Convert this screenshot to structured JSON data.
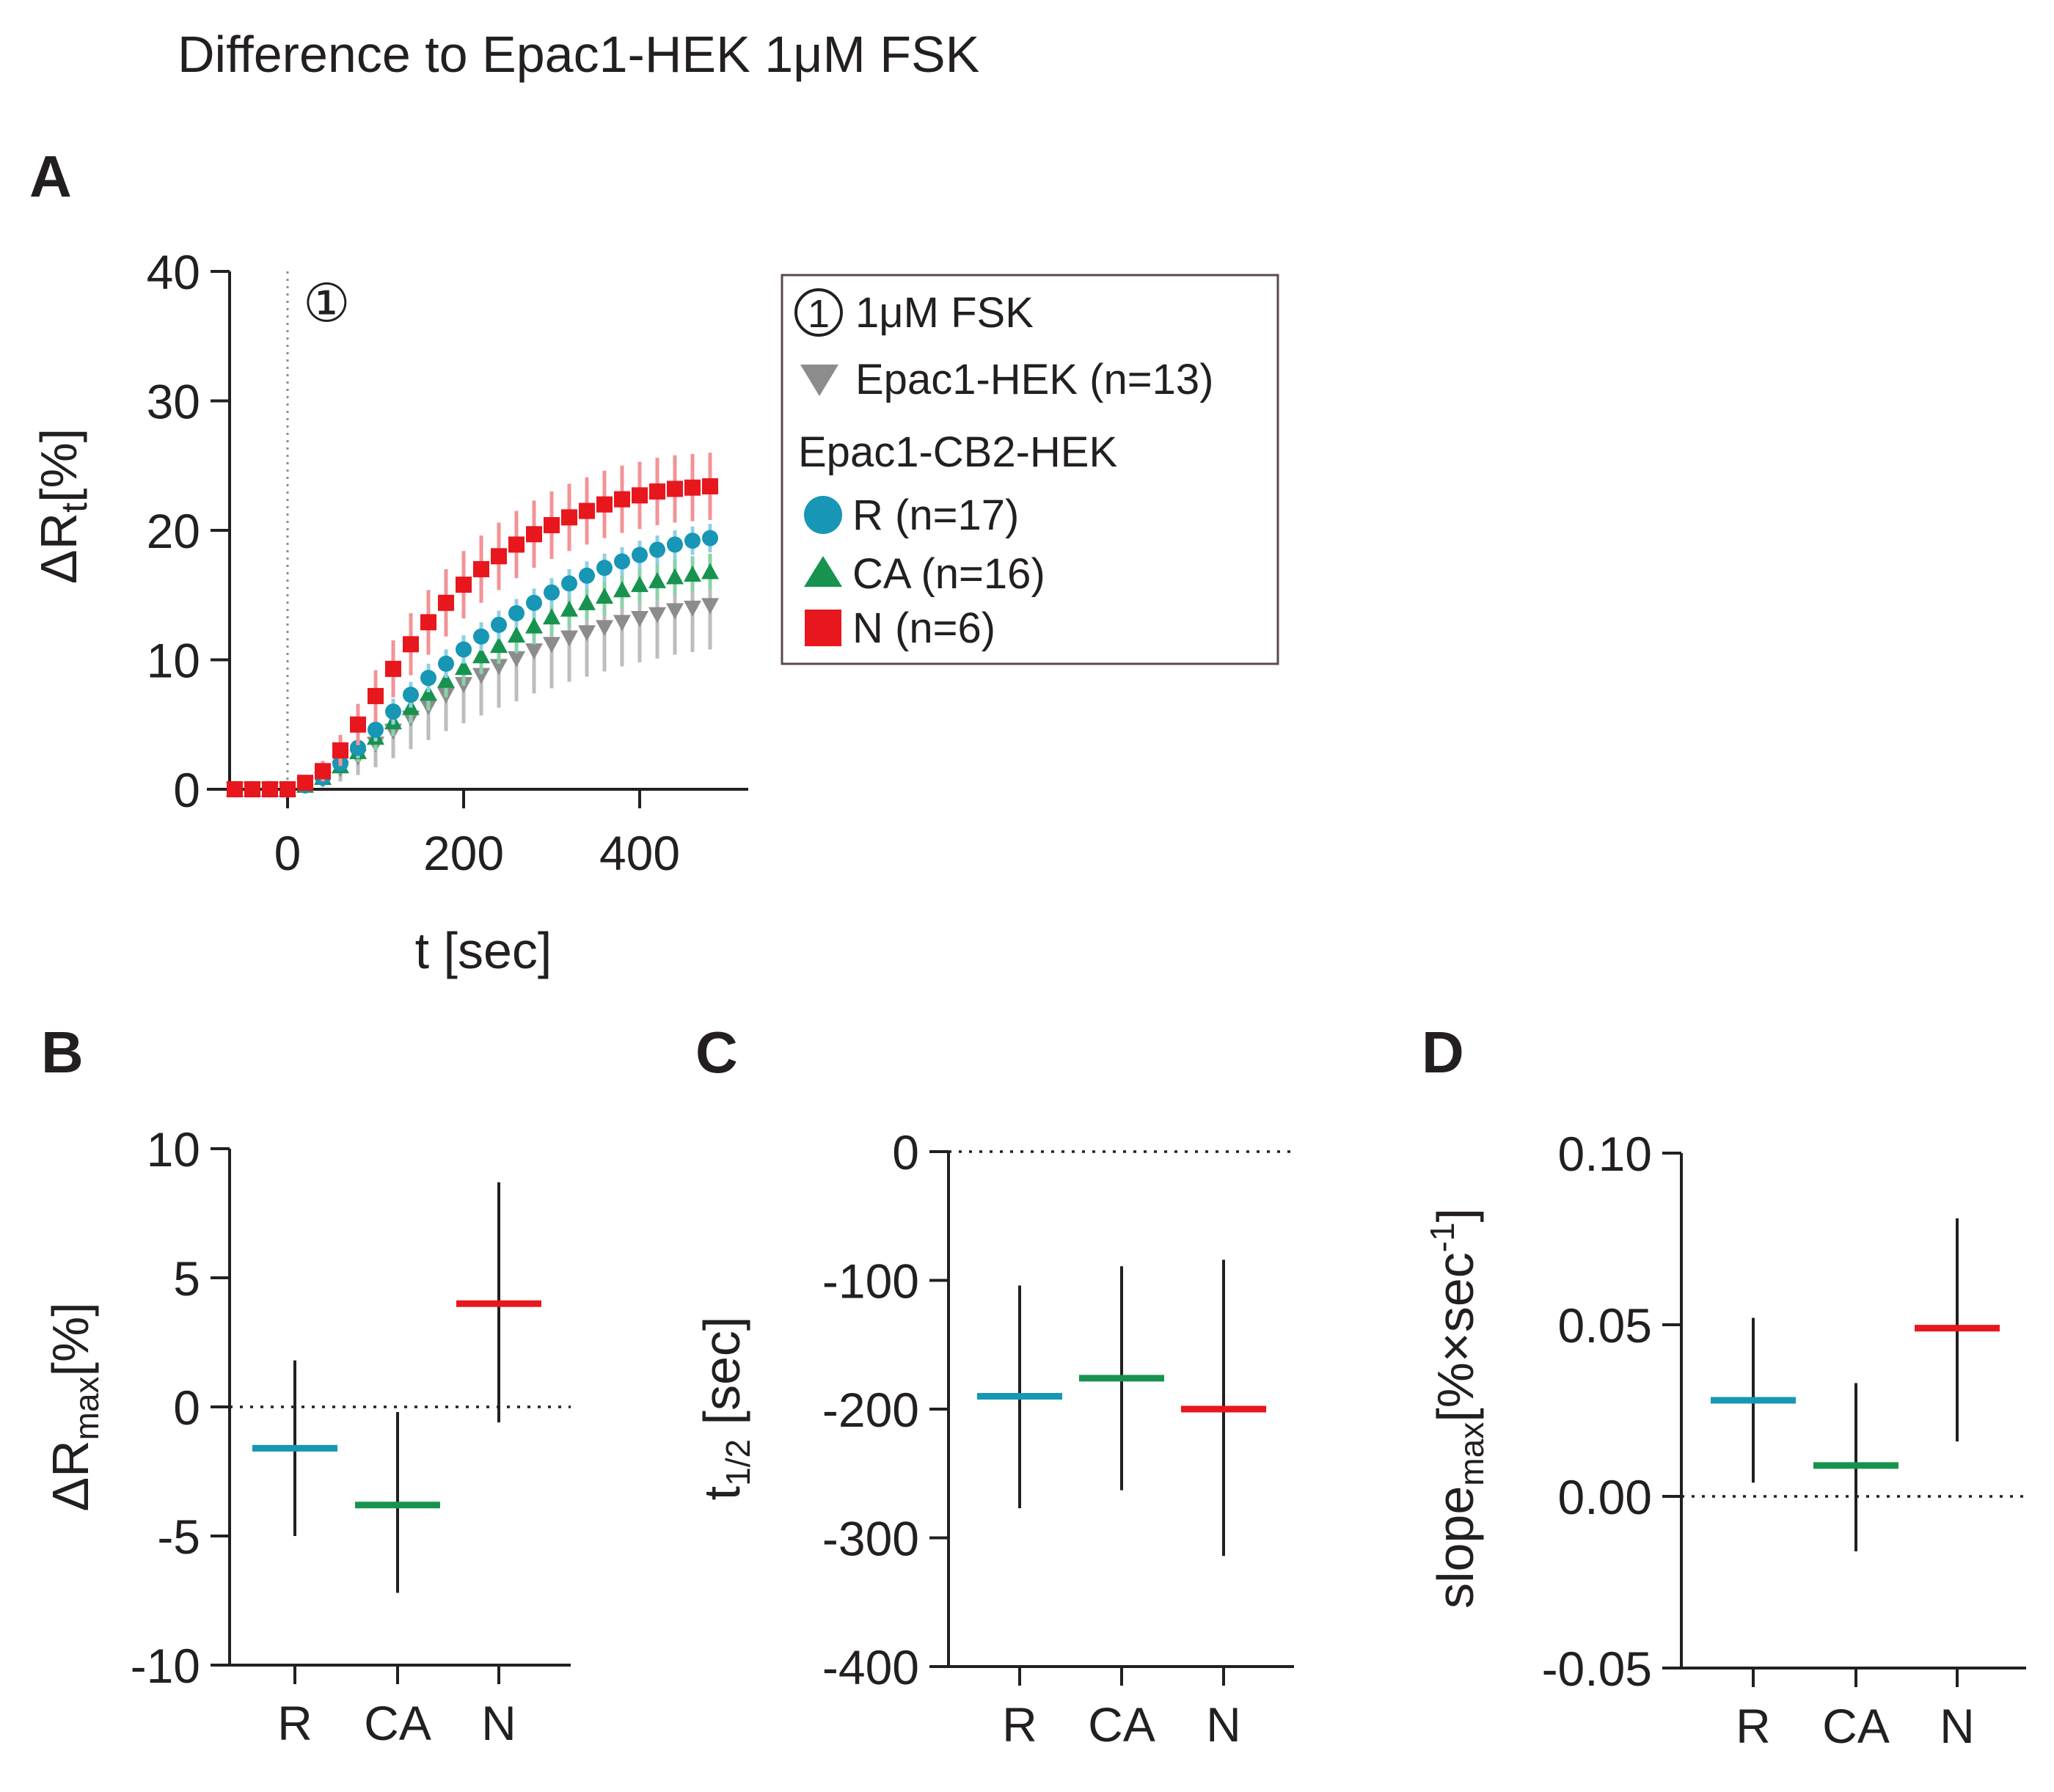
{
  "figure": {
    "title": "Difference to Epac1-HEK 1μM FSK",
    "colors": {
      "R": "#1796b5",
      "CA": "#17934f",
      "N": "#e8161d",
      "Epac1-HEK": "#8c8c8c"
    }
  },
  "chart_data": [
    {
      "panel": "A",
      "type": "scatter",
      "xlabel": "t [sec]",
      "ylabel": "ΔRt[%]",
      "ylabel_main": "ΔR",
      "ylabel_sub": "t",
      "ylabel_tail": "[%]",
      "xlim": [
        -75,
        485
      ],
      "ylim": [
        0,
        40
      ],
      "xticks": [
        0,
        200,
        400
      ],
      "yticks": [
        0,
        10,
        20,
        30,
        40
      ],
      "event_marker": {
        "x": 0,
        "symbol": "①",
        "label": "1μM FSK"
      },
      "legend": {
        "event_label": "1μM FSK",
        "group_heading": "Epac1-CB2-HEK",
        "entries": [
          {
            "key": "Epac1-HEK",
            "label": "Epac1-HEK (n=13)",
            "marker": "triangle-down"
          },
          {
            "key": "R",
            "label": "R (n=17)",
            "marker": "circle"
          },
          {
            "key": "CA",
            "label": "CA (n=16)",
            "marker": "triangle-up"
          },
          {
            "key": "N",
            "label": "N (n=6)",
            "marker": "square"
          }
        ]
      },
      "x": [
        -60,
        -40,
        -20,
        0,
        20,
        40,
        60,
        80,
        100,
        120,
        140,
        160,
        180,
        200,
        220,
        240,
        260,
        280,
        300,
        320,
        340,
        360,
        380,
        400,
        420,
        440,
        460,
        480
      ],
      "series": [
        {
          "key": "Epac1-HEK",
          "marker": "triangle-down",
          "values": [
            0,
            0,
            0,
            0,
            0.3,
            0.8,
            1.6,
            2.5,
            3.5,
            4.5,
            5.5,
            6.4,
            7.3,
            8.1,
            8.8,
            9.5,
            10.1,
            10.7,
            11.2,
            11.7,
            12.1,
            12.5,
            12.9,
            13.2,
            13.5,
            13.8,
            14.0,
            14.2
          ],
          "errors": [
            0,
            0,
            0,
            0,
            0.3,
            0.6,
            1.0,
            1.4,
            1.8,
            2.1,
            2.4,
            2.6,
            2.8,
            3.0,
            3.1,
            3.2,
            3.3,
            3.3,
            3.4,
            3.4,
            3.4,
            3.4,
            3.4,
            3.4,
            3.4,
            3.4,
            3.4,
            3.4
          ]
        },
        {
          "key": "R",
          "marker": "circle",
          "values": [
            0,
            0,
            0,
            0,
            0.3,
            0.9,
            2.0,
            3.2,
            4.6,
            6.0,
            7.3,
            8.6,
            9.7,
            10.8,
            11.8,
            12.7,
            13.6,
            14.4,
            15.2,
            15.9,
            16.5,
            17.1,
            17.6,
            18.1,
            18.5,
            18.9,
            19.2,
            19.4
          ],
          "errors": [
            0,
            0,
            0,
            0,
            0.2,
            0.4,
            0.6,
            0.8,
            0.9,
            1.0,
            1.0,
            1.1,
            1.1,
            1.1,
            1.1,
            1.1,
            1.1,
            1.1,
            1.1,
            1.1,
            1.1,
            1.1,
            1.1,
            1.1,
            1.1,
            1.1,
            1.1,
            1.1
          ]
        },
        {
          "key": "CA",
          "marker": "triangle-up",
          "values": [
            0,
            0,
            0,
            0,
            0.3,
            0.9,
            1.8,
            2.9,
            4.0,
            5.2,
            6.3,
            7.4,
            8.4,
            9.4,
            10.3,
            11.1,
            11.9,
            12.6,
            13.3,
            13.9,
            14.4,
            14.9,
            15.4,
            15.8,
            16.1,
            16.4,
            16.6,
            16.8
          ],
          "errors": [
            0,
            0,
            0,
            0,
            0.2,
            0.4,
            0.6,
            0.8,
            1.0,
            1.1,
            1.2,
            1.3,
            1.3,
            1.4,
            1.4,
            1.4,
            1.4,
            1.4,
            1.4,
            1.4,
            1.4,
            1.4,
            1.4,
            1.4,
            1.4,
            1.4,
            1.4,
            1.4
          ]
        },
        {
          "key": "N",
          "marker": "square",
          "values": [
            0,
            0,
            0,
            0,
            0.5,
            1.4,
            3.0,
            5.0,
            7.2,
            9.3,
            11.2,
            12.9,
            14.4,
            15.8,
            17.0,
            18.0,
            18.9,
            19.7,
            20.4,
            21.0,
            21.5,
            22.0,
            22.4,
            22.7,
            23.0,
            23.2,
            23.3,
            23.4
          ],
          "errors": [
            0,
            0,
            0,
            0,
            0.4,
            0.8,
            1.2,
            1.6,
            2.0,
            2.2,
            2.4,
            2.5,
            2.6,
            2.6,
            2.6,
            2.6,
            2.6,
            2.6,
            2.6,
            2.6,
            2.6,
            2.6,
            2.6,
            2.6,
            2.6,
            2.6,
            2.6,
            2.6
          ]
        }
      ]
    },
    {
      "panel": "B",
      "type": "scatter",
      "categories": [
        "R",
        "CA",
        "N"
      ],
      "ylabel_main": "ΔR",
      "ylabel_sub": "max",
      "ylabel_tail": "[%]",
      "ylim": [
        -10,
        10
      ],
      "yticks": [
        -10,
        -5,
        0,
        5,
        10
      ],
      "ytick_labels": [
        "-10",
        "-5",
        "0",
        "5",
        "10"
      ],
      "values": [
        -1.6,
        -3.8,
        4.0
      ],
      "lower": [
        -5.0,
        -7.2,
        -0.6
      ],
      "upper": [
        1.8,
        -0.2,
        8.7
      ]
    },
    {
      "panel": "C",
      "type": "scatter",
      "categories": [
        "R",
        "CA",
        "N"
      ],
      "ylabel_main": "t",
      "ylabel_sub": "1/2",
      "ylabel_tail": " [sec]",
      "ylim": [
        -400,
        0
      ],
      "yticks": [
        -400,
        -300,
        -200,
        -100,
        0
      ],
      "ytick_labels": [
        "-400",
        "-300",
        "-200",
        "-100",
        "0"
      ],
      "values": [
        -190,
        -176,
        -200
      ],
      "lower": [
        -277,
        -263,
        -314
      ],
      "upper": [
        -104,
        -89,
        -84
      ]
    },
    {
      "panel": "D",
      "type": "scatter",
      "categories": [
        "R",
        "CA",
        "N"
      ],
      "ylabel_main": "slope",
      "ylabel_sub": "max",
      "ylabel_tail": "[%×sec",
      "ylabel_sup": "-1",
      "ylabel_end": "]",
      "ylim": [
        -0.05,
        0.1
      ],
      "yticks": [
        -0.05,
        0,
        0.05,
        0.1
      ],
      "ytick_labels": [
        "-0.05",
        "0.00",
        "0.05",
        "0.10"
      ],
      "values": [
        0.028,
        0.009,
        0.049
      ],
      "lower": [
        0.004,
        -0.016,
        0.016
      ],
      "upper": [
        0.052,
        0.033,
        0.081
      ]
    }
  ]
}
